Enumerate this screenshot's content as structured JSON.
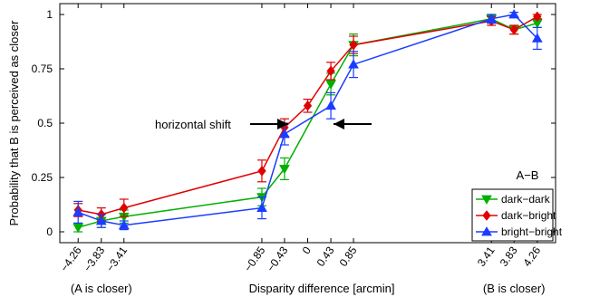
{
  "chart_data": {
    "type": "line",
    "ylabel": "Probability that B is perceived as closer",
    "xlabel": "Disparity difference [arcmin]",
    "xlim": [
      -4.6,
      4.6
    ],
    "ylim": [
      -0.05,
      1.05
    ],
    "xticks": [
      -4.26,
      -3.83,
      -3.41,
      -0.85,
      -0.43,
      0,
      0.43,
      0.85,
      3.41,
      3.83,
      4.26
    ],
    "xtick_labels": [
      "−4.26",
      "−3.83",
      "−3.41",
      "−0.85",
      "−0.43",
      "0",
      "0.43",
      "0.85",
      "3.41",
      "3.83",
      "4.26"
    ],
    "yticks": [
      0,
      0.25,
      0.5,
      0.75,
      1
    ],
    "ytick_labels": [
      "0",
      "0.25",
      "0.5",
      "0.75",
      "1"
    ],
    "group_labels": [
      {
        "text": "(A is closer)",
        "x": -3.83
      },
      {
        "text": "(B is closer)",
        "x": 3.83
      }
    ],
    "legend": {
      "title": "A−B",
      "placement": "bottom-right"
    },
    "annotation": {
      "text": "horizontal shift",
      "y": 0.5
    },
    "series": [
      {
        "name": "dark−dark",
        "color": "#00b000",
        "marker": "triangle-down",
        "x": [
          -4.26,
          -3.83,
          -3.41,
          -0.85,
          -0.43,
          0.43,
          0.85,
          3.41,
          3.83,
          4.26
        ],
        "y": [
          0.02,
          0.05,
          0.07,
          0.16,
          0.29,
          0.68,
          0.86,
          0.98,
          0.93,
          0.96
        ],
        "err": [
          0.02,
          0.03,
          0.03,
          0.04,
          0.05,
          0.05,
          0.05,
          0.02,
          0.02,
          0.02
        ]
      },
      {
        "name": "dark−bright",
        "color": "#e00000",
        "marker": "diamond",
        "x": [
          -4.26,
          -3.83,
          -3.41,
          -0.85,
          -0.43,
          0,
          0.43,
          0.85,
          3.41,
          3.83,
          4.26
        ],
        "y": [
          0.1,
          0.08,
          0.11,
          0.28,
          0.48,
          0.58,
          0.74,
          0.86,
          0.97,
          0.93,
          0.99
        ],
        "err": [
          0.03,
          0.03,
          0.04,
          0.05,
          0.04,
          0.03,
          0.04,
          0.04,
          0.02,
          0.02,
          0.01
        ]
      },
      {
        "name": "bright−bright",
        "color": "#1a3cff",
        "marker": "triangle-up",
        "x": [
          -4.26,
          -3.83,
          -3.41,
          -0.85,
          -0.43,
          0.43,
          0.85,
          3.41,
          3.83,
          4.26
        ],
        "y": [
          0.09,
          0.05,
          0.03,
          0.11,
          0.45,
          0.58,
          0.77,
          0.98,
          1.0,
          0.89
        ],
        "err": [
          0.05,
          0.03,
          0.02,
          0.05,
          0.05,
          0.06,
          0.06,
          0.02,
          0.01,
          0.05
        ]
      }
    ]
  }
}
